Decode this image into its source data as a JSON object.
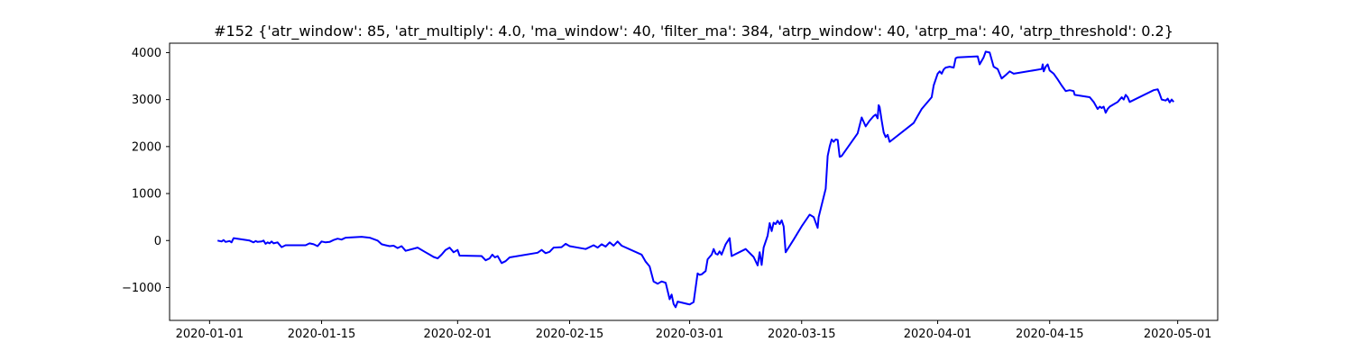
{
  "chart_data": {
    "type": "line",
    "title": "#152 {'atr_window': 85, 'atr_multiply': 4.0, 'ma_window': 40, 'filter_ma': 384, 'atrp_window': 40, 'atrp_ma': 40, 'atrp_threshold': 0.2}",
    "xlabel": "",
    "ylabel": "",
    "x_axis": {
      "type": "date",
      "range": [
        "2019-12-27",
        "2020-05-06"
      ],
      "ticks": [
        "2020-01-01",
        "2020-01-15",
        "2020-02-01",
        "2020-02-15",
        "2020-03-01",
        "2020-03-15",
        "2020-04-01",
        "2020-04-15",
        "2020-05-01"
      ]
    },
    "y_axis": {
      "range": [
        -1700,
        4200
      ],
      "ticks": [
        -1000,
        0,
        1000,
        2000,
        3000,
        4000
      ]
    },
    "grid": false,
    "legend": "none",
    "series": [
      {
        "color": "#0000ff",
        "points": [
          [
            "2020-01-02",
            0
          ],
          [
            "2020-01-02 12:00",
            -20
          ],
          [
            "2020-01-02 18:00",
            10
          ],
          [
            "2020-01-03",
            -30
          ],
          [
            "2020-01-03 12:00",
            -10
          ],
          [
            "2020-01-03 18:00",
            -40
          ],
          [
            "2020-01-04",
            50
          ],
          [
            "2020-01-06",
            0
          ],
          [
            "2020-01-06 12:00",
            -40
          ],
          [
            "2020-01-06 18:00",
            -10
          ],
          [
            "2020-01-07",
            -30
          ],
          [
            "2020-01-07 12:00",
            -20
          ],
          [
            "2020-01-07 18:00",
            0
          ],
          [
            "2020-01-08",
            -70
          ],
          [
            "2020-01-08 06:00",
            -40
          ],
          [
            "2020-01-08 12:00",
            -60
          ],
          [
            "2020-01-08 18:00",
            -20
          ],
          [
            "2020-01-09",
            -60
          ],
          [
            "2020-01-09 12:00",
            -40
          ],
          [
            "2020-01-10",
            -140
          ],
          [
            "2020-01-10 12:00",
            -100
          ],
          [
            "2020-01-13",
            -100
          ],
          [
            "2020-01-13 12:00",
            -60
          ],
          [
            "2020-01-14",
            -80
          ],
          [
            "2020-01-14 12:00",
            -120
          ],
          [
            "2020-01-15",
            -20
          ],
          [
            "2020-01-15 12:00",
            -40
          ],
          [
            "2020-01-16",
            -30
          ],
          [
            "2020-01-16 12:00",
            10
          ],
          [
            "2020-01-17",
            40
          ],
          [
            "2020-01-17 12:00",
            20
          ],
          [
            "2020-01-18",
            60
          ],
          [
            "2020-01-20",
            80
          ],
          [
            "2020-01-21",
            60
          ],
          [
            "2020-01-22",
            0
          ],
          [
            "2020-01-22 12:00",
            -80
          ],
          [
            "2020-01-23",
            -100
          ],
          [
            "2020-01-23 12:00",
            -120
          ],
          [
            "2020-01-24",
            -110
          ],
          [
            "2020-01-24 12:00",
            -160
          ],
          [
            "2020-01-25",
            -120
          ],
          [
            "2020-01-25 12:00",
            -220
          ],
          [
            "2020-01-27",
            -150
          ],
          [
            "2020-01-28",
            -250
          ],
          [
            "2020-01-28 12:00",
            -300
          ],
          [
            "2020-01-29",
            -350
          ],
          [
            "2020-01-29 12:00",
            -380
          ],
          [
            "2020-01-30",
            -300
          ],
          [
            "2020-01-30 12:00",
            -200
          ],
          [
            "2020-01-31",
            -150
          ],
          [
            "2020-01-31 12:00",
            -250
          ],
          [
            "2020-02-01",
            -200
          ],
          [
            "2020-02-01 06:00",
            -320
          ],
          [
            "2020-02-04",
            -330
          ],
          [
            "2020-02-04 12:00",
            -420
          ],
          [
            "2020-02-05",
            -380
          ],
          [
            "2020-02-05 08:00",
            -300
          ],
          [
            "2020-02-05 16:00",
            -360
          ],
          [
            "2020-02-06",
            -330
          ],
          [
            "2020-02-06 12:00",
            -480
          ],
          [
            "2020-02-07",
            -440
          ],
          [
            "2020-02-07 12:00",
            -360
          ],
          [
            "2020-02-11",
            -260
          ],
          [
            "2020-02-11 12:00",
            -200
          ],
          [
            "2020-02-12",
            -270
          ],
          [
            "2020-02-12 12:00",
            -240
          ],
          [
            "2020-02-13",
            -150
          ],
          [
            "2020-02-14",
            -140
          ],
          [
            "2020-02-14 12:00",
            -70
          ],
          [
            "2020-02-15",
            -120
          ],
          [
            "2020-02-17",
            -180
          ],
          [
            "2020-02-18",
            -100
          ],
          [
            "2020-02-18 12:00",
            -150
          ],
          [
            "2020-02-19",
            -80
          ],
          [
            "2020-02-19 12:00",
            -130
          ],
          [
            "2020-02-20",
            -40
          ],
          [
            "2020-02-20 12:00",
            -110
          ],
          [
            "2020-02-21",
            -20
          ],
          [
            "2020-02-21 12:00",
            -110
          ],
          [
            "2020-02-24",
            -300
          ],
          [
            "2020-02-24 12:00",
            -450
          ],
          [
            "2020-02-25",
            -550
          ],
          [
            "2020-02-25 12:00",
            -870
          ],
          [
            "2020-02-26",
            -920
          ],
          [
            "2020-02-26 12:00",
            -870
          ],
          [
            "2020-02-27",
            -900
          ],
          [
            "2020-02-27 12:00",
            -1250
          ],
          [
            "2020-02-27 18:00",
            -1150
          ],
          [
            "2020-02-28",
            -1350
          ],
          [
            "2020-02-28 06:00",
            -1420
          ],
          [
            "2020-02-28 12:00",
            -1300
          ],
          [
            "2020-03-01",
            -1360
          ],
          [
            "2020-03-01 12:00",
            -1310
          ],
          [
            "2020-03-02",
            -700
          ],
          [
            "2020-03-02 06:00",
            -730
          ],
          [
            "2020-03-02 12:00",
            -720
          ],
          [
            "2020-03-03",
            -650
          ],
          [
            "2020-03-03 06:00",
            -400
          ],
          [
            "2020-03-03 18:00",
            -300
          ],
          [
            "2020-03-04",
            -180
          ],
          [
            "2020-03-04 06:00",
            -280
          ],
          [
            "2020-03-04 12:00",
            -300
          ],
          [
            "2020-03-04 18:00",
            -230
          ],
          [
            "2020-03-05",
            -300
          ],
          [
            "2020-03-05 12:00",
            -80
          ],
          [
            "2020-03-06",
            50
          ],
          [
            "2020-03-06 06:00",
            -330
          ],
          [
            "2020-03-08",
            -180
          ],
          [
            "2020-03-09",
            -350
          ],
          [
            "2020-03-09 12:00",
            -530
          ],
          [
            "2020-03-09 18:00",
            -250
          ],
          [
            "2020-03-10",
            -520
          ],
          [
            "2020-03-10 06:00",
            -150
          ],
          [
            "2020-03-10 18:00",
            100
          ],
          [
            "2020-03-11",
            370
          ],
          [
            "2020-03-11 06:00",
            200
          ],
          [
            "2020-03-11 12:00",
            380
          ],
          [
            "2020-03-11 18:00",
            350
          ],
          [
            "2020-03-12",
            420
          ],
          [
            "2020-03-12 06:00",
            350
          ],
          [
            "2020-03-12 12:00",
            430
          ],
          [
            "2020-03-12 18:00",
            300
          ],
          [
            "2020-03-13",
            -250
          ],
          [
            "2020-03-14",
            20
          ],
          [
            "2020-03-15",
            300
          ],
          [
            "2020-03-16",
            550
          ],
          [
            "2020-03-16 12:00",
            500
          ],
          [
            "2020-03-17",
            270
          ],
          [
            "2020-03-17 03:00",
            500
          ],
          [
            "2020-03-18",
            1100
          ],
          [
            "2020-03-18 06:00",
            1800
          ],
          [
            "2020-03-18 12:00",
            2000
          ],
          [
            "2020-03-18 18:00",
            2150
          ],
          [
            "2020-03-19",
            2100
          ],
          [
            "2020-03-19 06:00",
            2150
          ],
          [
            "2020-03-19 12:00",
            2140
          ],
          [
            "2020-03-19 18:00",
            1780
          ],
          [
            "2020-03-20",
            1800
          ],
          [
            "2020-03-22",
            2280
          ],
          [
            "2020-03-22 12:00",
            2620
          ],
          [
            "2020-03-23",
            2430
          ],
          [
            "2020-03-23 12:00",
            2550
          ],
          [
            "2020-03-24",
            2650
          ],
          [
            "2020-03-24 06:00",
            2680
          ],
          [
            "2020-03-24 12:00",
            2600
          ],
          [
            "2020-03-24 15:00",
            2880
          ],
          [
            "2020-03-24 18:00",
            2840
          ],
          [
            "2020-03-25",
            2550
          ],
          [
            "2020-03-25 06:00",
            2300
          ],
          [
            "2020-03-25 12:00",
            2200
          ],
          [
            "2020-03-25 18:00",
            2250
          ],
          [
            "2020-03-26",
            2100
          ],
          [
            "2020-03-29",
            2500
          ],
          [
            "2020-03-30",
            2800
          ],
          [
            "2020-03-31",
            3000
          ],
          [
            "2020-03-31 06:00",
            3050
          ],
          [
            "2020-03-31 12:00",
            3300
          ],
          [
            "2020-04-01",
            3550
          ],
          [
            "2020-04-01 06:00",
            3600
          ],
          [
            "2020-04-01 12:00",
            3550
          ],
          [
            "2020-04-01 18:00",
            3640
          ],
          [
            "2020-04-02",
            3680
          ],
          [
            "2020-04-02 12:00",
            3700
          ],
          [
            "2020-04-03",
            3680
          ],
          [
            "2020-04-03 06:00",
            3880
          ],
          [
            "2020-04-03 12:00",
            3900
          ],
          [
            "2020-04-06",
            3920
          ],
          [
            "2020-04-06 06:00",
            3750
          ],
          [
            "2020-04-06 18:00",
            3900
          ],
          [
            "2020-04-07",
            4020
          ],
          [
            "2020-04-07 12:00",
            4000
          ],
          [
            "2020-04-08",
            3700
          ],
          [
            "2020-04-08 12:00",
            3650
          ],
          [
            "2020-04-09",
            3450
          ],
          [
            "2020-04-09 12:00",
            3520
          ],
          [
            "2020-04-10",
            3600
          ],
          [
            "2020-04-10 12:00",
            3550
          ],
          [
            "2020-04-14",
            3650
          ],
          [
            "2020-04-14 03:00",
            3750
          ],
          [
            "2020-04-14 06:00",
            3600
          ],
          [
            "2020-04-14 12:00",
            3700
          ],
          [
            "2020-04-14 18:00",
            3750
          ],
          [
            "2020-04-15",
            3620
          ],
          [
            "2020-04-15 12:00",
            3550
          ],
          [
            "2020-04-16",
            3430
          ],
          [
            "2020-04-16 12:00",
            3300
          ],
          [
            "2020-04-17",
            3180
          ],
          [
            "2020-04-17 12:00",
            3200
          ],
          [
            "2020-04-18",
            3180
          ],
          [
            "2020-04-18 03:00",
            3100
          ],
          [
            "2020-04-20",
            3050
          ],
          [
            "2020-04-20 12:00",
            2950
          ],
          [
            "2020-04-21",
            2800
          ],
          [
            "2020-04-21 06:00",
            2850
          ],
          [
            "2020-04-21 12:00",
            2820
          ],
          [
            "2020-04-21 18:00",
            2850
          ],
          [
            "2020-04-22",
            2720
          ],
          [
            "2020-04-22 06:00",
            2800
          ],
          [
            "2020-04-22 12:00",
            2850
          ],
          [
            "2020-04-23",
            2900
          ],
          [
            "2020-04-23 12:00",
            2950
          ],
          [
            "2020-04-24",
            3050
          ],
          [
            "2020-04-24 06:00",
            3000
          ],
          [
            "2020-04-24 12:00",
            3100
          ],
          [
            "2020-04-24 18:00",
            3050
          ],
          [
            "2020-04-25",
            2950
          ],
          [
            "2020-04-28",
            3200
          ],
          [
            "2020-04-28 12:00",
            3220
          ],
          [
            "2020-04-28 18:00",
            3120
          ],
          [
            "2020-04-29",
            3000
          ],
          [
            "2020-04-29 12:00",
            2980
          ],
          [
            "2020-04-29 18:00",
            3020
          ],
          [
            "2020-04-30",
            2940
          ],
          [
            "2020-04-30 06:00",
            3000
          ],
          [
            "2020-04-30 12:00",
            2950
          ]
        ]
      }
    ]
  }
}
